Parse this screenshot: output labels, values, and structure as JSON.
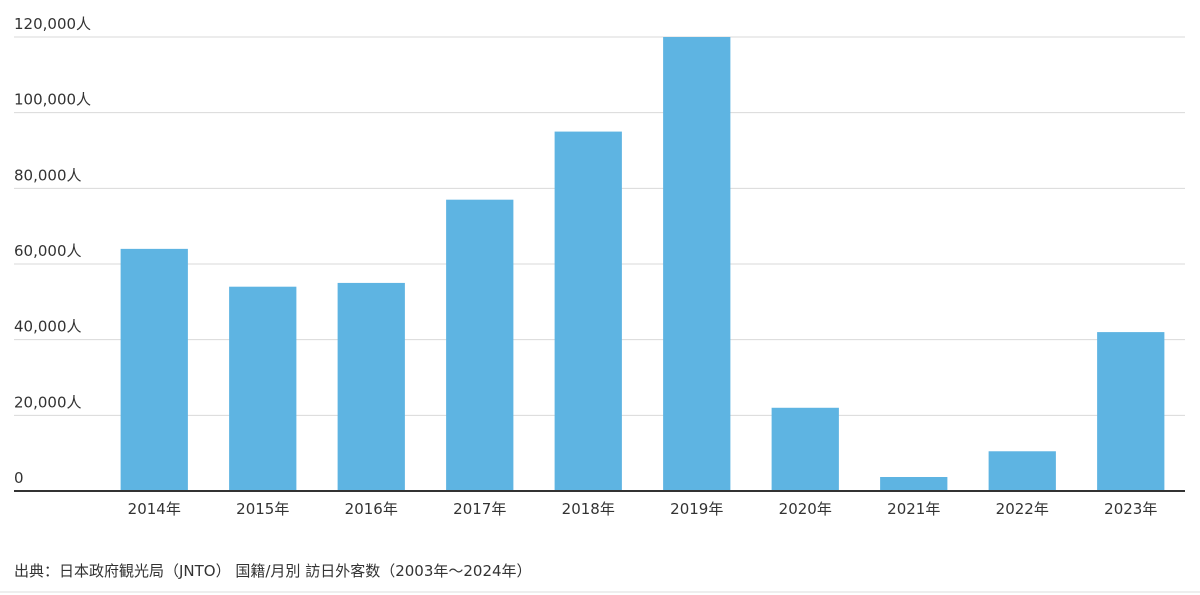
{
  "chart_data": {
    "type": "bar",
    "categories": [
      "2014年",
      "2015年",
      "2016年",
      "2017年",
      "2018年",
      "2019年",
      "2020年",
      "2021年",
      "2022年",
      "2023年"
    ],
    "values": [
      64000,
      54000,
      55000,
      77000,
      95000,
      120000,
      22000,
      3700,
      10500,
      42000
    ],
    "color": "#5eb4e2",
    "ylim": [
      0,
      120000
    ],
    "yticks": [
      0,
      {
        "value": 20000,
        "label": "20,000人"
      },
      {
        "value": 40000,
        "label": "40,000人"
      },
      {
        "value": 60000,
        "label": "60,000人"
      },
      {
        "value": 80000,
        "label": "80,000人"
      },
      {
        "value": 100000,
        "label": "100,000人"
      },
      {
        "value": 120000,
        "label": "120,000人"
      }
    ],
    "grid": true,
    "source": "出典：日本政府観光局（JNTO） 国籍/月別 訪日外客数（2003年～2024年）"
  }
}
